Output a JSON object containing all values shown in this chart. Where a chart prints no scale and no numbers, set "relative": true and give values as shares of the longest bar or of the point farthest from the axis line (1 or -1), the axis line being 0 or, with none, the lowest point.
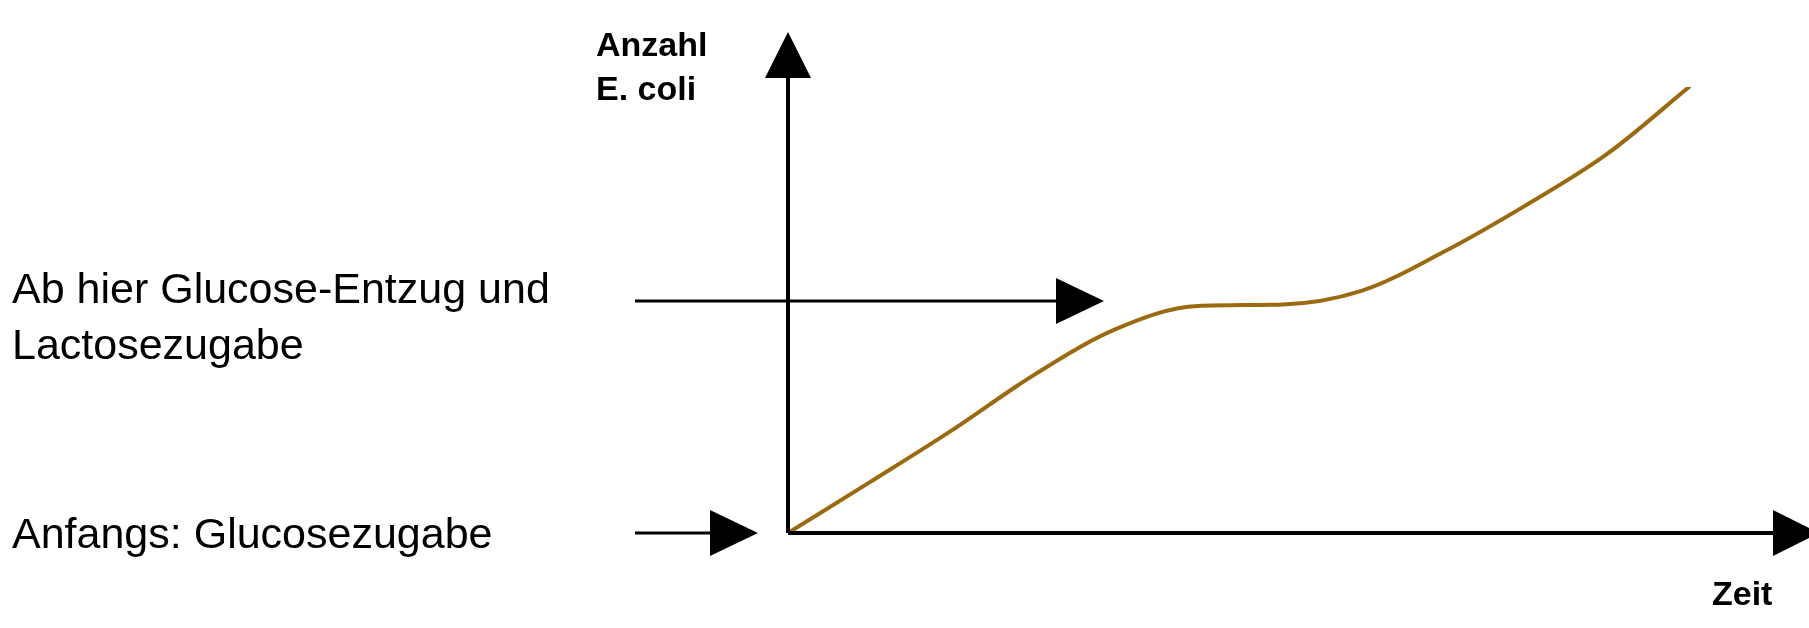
{
  "chart_data": {
    "type": "line",
    "relative": true,
    "xlabel": "Zeit",
    "ylabel": "Anzahl E. coli",
    "annotations": [
      "Ab hier Glucose-Entzug und Lactosezugabe",
      "Anfangs: Glucosezugabe"
    ],
    "categories": [
      null,
      null,
      null,
      null,
      null,
      null,
      null,
      null,
      null,
      null,
      null,
      null,
      null
    ],
    "series": [
      {
        "color": "#9c6a0e",
        "values": [
          0,
          0.114,
          0.23,
          0.354,
          0.457,
          0.509,
          0.512,
          0.543,
          0.63,
          0.734,
          0.85,
          1,
          null
        ]
      }
    ],
    "marker": "none",
    "line_style": "solid",
    "legend": false
  }
}
